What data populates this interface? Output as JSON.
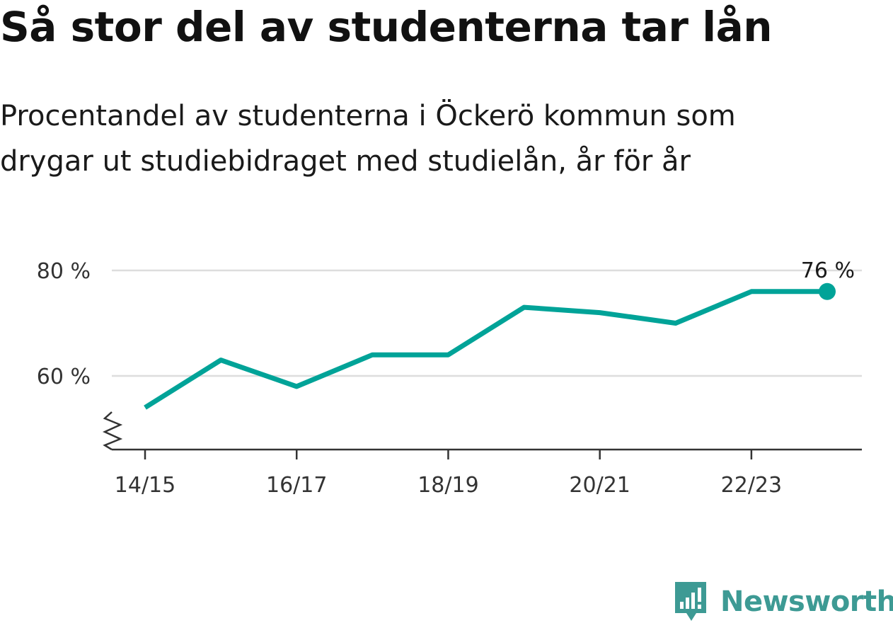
{
  "header": {
    "title": "Så stor del av studenterna tar lån",
    "subtitle_lines": [
      "Procentandel av studenterna i Öckerö kommun som",
      "drygar ut studiebidraget med studielån, år för år"
    ]
  },
  "chart_data": {
    "type": "line",
    "title": "Så stor del av studenterna tar lån",
    "subtitle": "Procentandel av studenterna i Öckerö kommun som drygar ut studiebidraget med studielån, år för år",
    "x": [
      "14/15",
      "15/16",
      "16/17",
      "17/18",
      "18/19",
      "19/20",
      "20/21",
      "21/22",
      "22/23",
      "23/24"
    ],
    "x_tick_labels": [
      "14/15",
      "16/17",
      "18/19",
      "20/21",
      "22/23"
    ],
    "series": [
      {
        "values": [
          54,
          63,
          58,
          64,
          64,
          73,
          72,
          70,
          76,
          76
        ],
        "color": "#00a398"
      }
    ],
    "ylim": [
      46,
      84
    ],
    "y_ticks": [
      60,
      80
    ],
    "y_tick_labels": [
      "60 %",
      "80 %"
    ],
    "y_axis_break": true,
    "grid": true,
    "end_label": "76 %",
    "xlabel": "",
    "ylabel": ""
  },
  "brand": {
    "name": "Newsworthy",
    "color": "#3d9a94",
    "icon": "bar-chart-speech-icon"
  }
}
